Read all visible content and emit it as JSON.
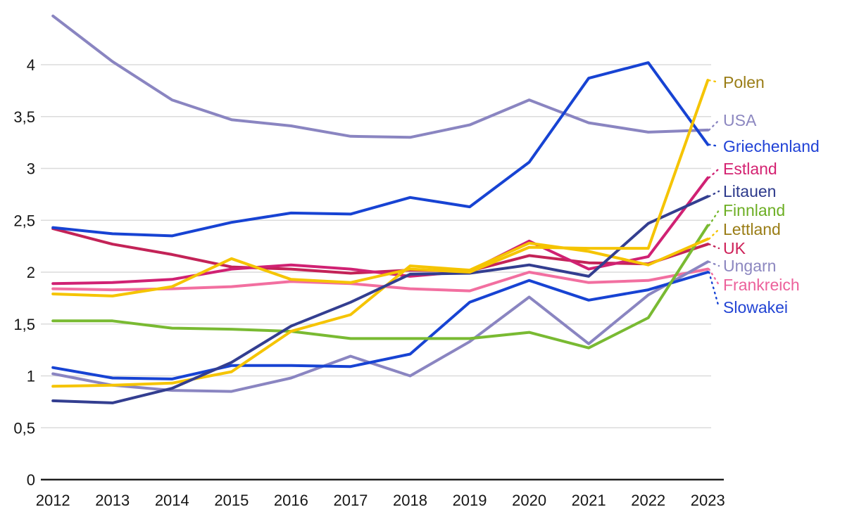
{
  "chart_data": {
    "type": "line",
    "title": "",
    "xlabel": "",
    "ylabel": "",
    "x": [
      2012,
      2013,
      2014,
      2015,
      2016,
      2017,
      2018,
      2019,
      2020,
      2021,
      2022,
      2023
    ],
    "x_tick_labels": [
      "2012",
      "2013",
      "2014",
      "2015",
      "2016",
      "2017",
      "2018",
      "2019",
      "2020",
      "2021",
      "2022",
      "2023"
    ],
    "y_ticks": [
      0,
      0.5,
      1,
      1.5,
      2,
      2.5,
      3,
      3.5,
      4
    ],
    "y_tick_labels": [
      "0",
      "0,5",
      "1",
      "1,5",
      "2",
      "2,5",
      "3",
      "3,5",
      "4"
    ],
    "ylim": [
      0,
      4.55
    ],
    "grid": "horizontal",
    "legend_position": "right-inline-labels",
    "decimal_separator": ",",
    "series": [
      {
        "name": "Polen",
        "color": "#F5C400",
        "label_color": "#9A7D16",
        "values": [
          1.79,
          1.77,
          1.86,
          2.13,
          1.93,
          1.9,
          2.03,
          2.0,
          2.24,
          2.23,
          2.23,
          3.85
        ]
      },
      {
        "name": "USA",
        "color": "#8A85C1",
        "label_color": "#8C87C0",
        "values": [
          4.47,
          4.03,
          3.66,
          3.47,
          3.41,
          3.31,
          3.3,
          3.42,
          3.66,
          3.44,
          3.35,
          3.37
        ]
      },
      {
        "name": "Griechenland",
        "color": "#1743D3",
        "label_color": "#1F41D6",
        "values": [
          2.43,
          2.37,
          2.35,
          2.48,
          2.57,
          2.56,
          2.72,
          2.63,
          3.06,
          3.87,
          4.02,
          3.23
        ]
      },
      {
        "name": "Estland",
        "color": "#D02173",
        "label_color": "#D42271",
        "values": [
          1.89,
          1.9,
          1.93,
          2.03,
          2.07,
          2.03,
          1.96,
          2.01,
          2.3,
          2.03,
          2.15,
          2.91
        ]
      },
      {
        "name": "Litauen",
        "color": "#333E90",
        "label_color": "#2D3A8C",
        "values": [
          0.76,
          0.74,
          0.88,
          1.13,
          1.48,
          1.71,
          1.98,
          1.99,
          2.07,
          1.96,
          2.47,
          2.73
        ]
      },
      {
        "name": "Finnland",
        "color": "#79BA32",
        "label_color": "#6CAE23",
        "values": [
          1.53,
          1.53,
          1.46,
          1.45,
          1.43,
          1.36,
          1.36,
          1.36,
          1.42,
          1.27,
          1.56,
          2.45
        ]
      },
      {
        "name": "Lettland",
        "color": "#F5C400",
        "label_color": "#9A7D16",
        "values": [
          0.9,
          0.91,
          0.93,
          1.04,
          1.43,
          1.59,
          2.06,
          2.02,
          2.28,
          2.2,
          2.07,
          2.32
        ]
      },
      {
        "name": "UK",
        "color": "#C32357",
        "label_color": "#CE2058",
        "values": [
          2.42,
          2.27,
          2.17,
          2.05,
          2.03,
          1.99,
          2.02,
          2.01,
          2.16,
          2.09,
          2.08,
          2.27
        ]
      },
      {
        "name": "Ungarn",
        "color": "#8A85C1",
        "label_color": "#8C87C0",
        "values": [
          1.02,
          0.91,
          0.86,
          0.85,
          0.98,
          1.19,
          1.0,
          1.33,
          1.76,
          1.31,
          1.78,
          2.1
        ]
      },
      {
        "name": "Frankreich",
        "color": "#F26FA0",
        "label_color": "#EC619B",
        "values": [
          1.84,
          1.83,
          1.84,
          1.86,
          1.91,
          1.89,
          1.84,
          1.82,
          2.0,
          1.9,
          1.92,
          2.03
        ]
      },
      {
        "name": "Slowakei",
        "color": "#1743D3",
        "label_color": "#2244D4",
        "values": [
          1.08,
          0.98,
          0.97,
          1.1,
          1.1,
          1.09,
          1.21,
          1.71,
          1.92,
          1.73,
          1.83,
          2.0
        ]
      }
    ]
  },
  "colors": {
    "background": "#FFFFFF",
    "grid": "#DBDBDB",
    "axis": "#1F1F1F",
    "tick_text": "#161616"
  }
}
